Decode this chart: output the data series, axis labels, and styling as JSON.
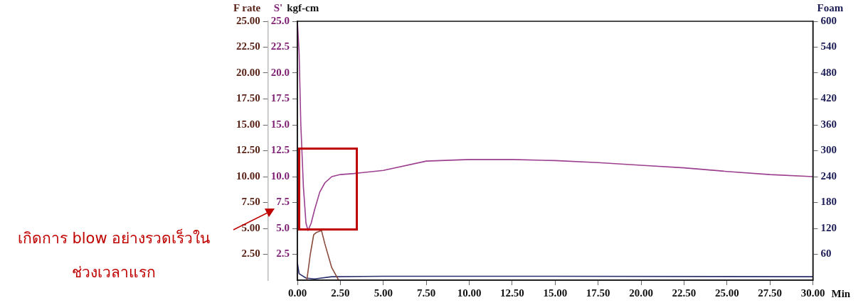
{
  "chart_data": {
    "type": "line",
    "xlabel": "Min",
    "ylabel": "F rate",
    "y2label": "S'",
    "y3label": "Foam",
    "annotations": [
      "kgf-cm",
      "เกิดการ blow อย่างรวดเร็วใน\nช่วงเวลาแรก"
    ],
    "xlim": [
      0,
      30
    ],
    "xticks": [
      {
        "value": 0,
        "label": "0.00"
      },
      {
        "value": 2.5,
        "label": "2.50"
      },
      {
        "value": 5,
        "label": "5.00"
      },
      {
        "value": 7.5,
        "label": "7.50"
      },
      {
        "value": 10,
        "label": "10.00"
      },
      {
        "value": 12.5,
        "label": "12.50"
      },
      {
        "value": 15,
        "label": "15.00"
      },
      {
        "value": 17.5,
        "label": "17.50"
      },
      {
        "value": 20,
        "label": "20.00"
      },
      {
        "value": 22.5,
        "label": "22.50"
      },
      {
        "value": 25,
        "label": "25.00"
      },
      {
        "value": 27.5,
        "label": "27.50"
      },
      {
        "value": 30,
        "label": "30.00"
      }
    ],
    "ylim": [
      0,
      25
    ],
    "yticks": [
      {
        "value": 2.5,
        "label": "2.50"
      },
      {
        "value": 5,
        "label": "5.00"
      },
      {
        "value": 7.5,
        "label": "7.50"
      },
      {
        "value": 10,
        "label": "10.00"
      },
      {
        "value": 12.5,
        "label": "12.50"
      },
      {
        "value": 15,
        "label": "15.00"
      },
      {
        "value": 17.5,
        "label": "17.50"
      },
      {
        "value": 20,
        "label": "20.00"
      },
      {
        "value": 22.5,
        "label": "22.50"
      },
      {
        "value": 25,
        "label": "25.00"
      }
    ],
    "y2lim": [
      0,
      25
    ],
    "y2ticks": [
      2.5,
      {
        "value": 5,
        "label": "5.0"
      },
      7.5,
      {
        "value": 10,
        "label": "10.0"
      },
      12.5,
      {
        "value": 15,
        "label": "15.0"
      },
      17.5,
      {
        "value": 20,
        "label": "20.0"
      },
      22.5,
      {
        "value": 25,
        "label": "25.0"
      }
    ],
    "y3lim": [
      0,
      600
    ],
    "y3ticks": [
      60,
      120,
      180,
      240,
      300,
      360,
      420,
      480,
      540,
      600
    ],
    "grid": false,
    "legend": false,
    "marker": "none",
    "line_style": "solid",
    "series": [
      {
        "color": "#9c3f8f",
        "axis": "y2",
        "x": [
          0,
          0.1,
          0.2,
          0.35,
          0.5,
          0.62,
          0.8,
          1.0,
          1.3,
          1.6,
          2.0,
          2.5,
          3.3,
          5,
          7.5,
          10,
          12.5,
          15,
          17.5,
          20,
          22.5,
          25,
          27.5,
          30
        ],
        "values": [
          25,
          22,
          15,
          9,
          5.5,
          4.8,
          5.5,
          6.8,
          8.5,
          9.4,
          10,
          10.2,
          10.3,
          10.6,
          11.5,
          11.65,
          11.65,
          11.55,
          11.35,
          11.1,
          10.85,
          10.5,
          10.2,
          10
        ]
      },
      {
        "color": "#8a4b3c",
        "axis": "y",
        "x": [
          0.55,
          0.75,
          0.95,
          1.1,
          1.4,
          1.6,
          2.0,
          2.4
        ],
        "values": [
          0,
          2.5,
          4.4,
          4.6,
          4.8,
          3.5,
          1.2,
          0
        ]
      },
      {
        "color": "#2b2f6e",
        "axis": "y3",
        "x": [
          0,
          0.1,
          0.5,
          1,
          2,
          5,
          15,
          30
        ],
        "values": [
          40,
          15,
          5,
          3,
          8,
          9,
          9,
          8
        ]
      }
    ]
  }
}
